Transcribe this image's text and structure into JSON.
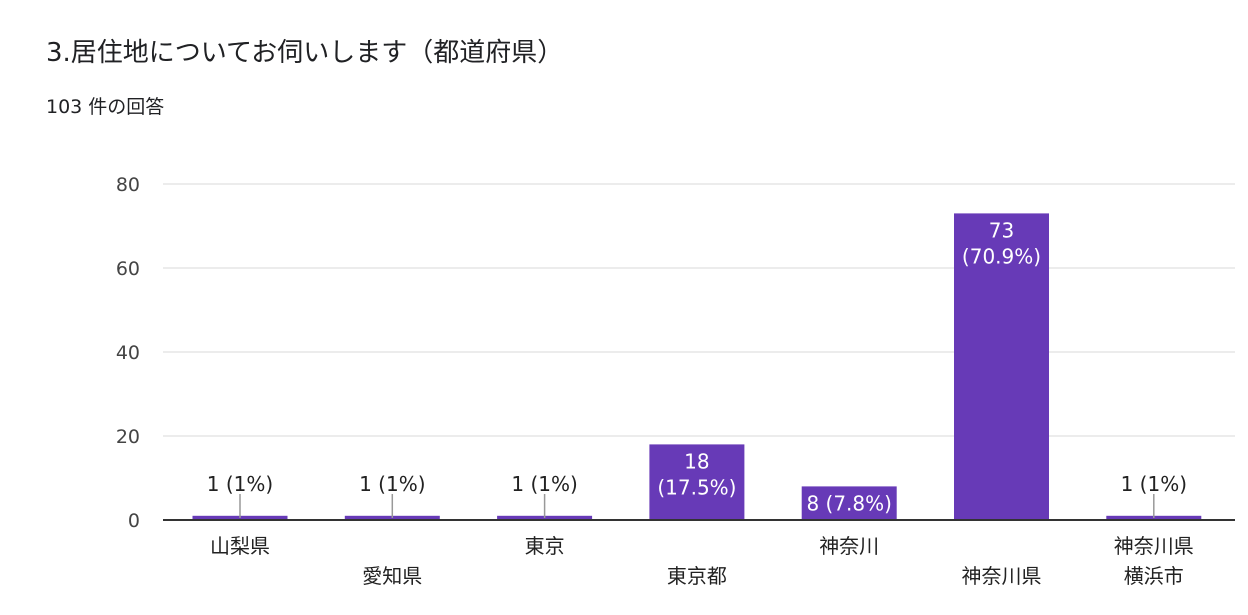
{
  "header": {
    "title": "3.居住地についてお伺いします（都道府県）",
    "subtitle": "103 件の回答"
  },
  "colors": {
    "bar": "#673ab7",
    "grid": "#e6e6e6",
    "axis": "#333333"
  },
  "chart_data": {
    "type": "bar",
    "title": "3.居住地についてお伺いします（都道府県）",
    "categories": [
      [
        "山梨県"
      ],
      [
        "愛知県"
      ],
      [
        "東京"
      ],
      [
        "東京都"
      ],
      [
        "神奈川"
      ],
      [
        "神奈川県"
      ],
      [
        "神奈川県",
        "横浜市"
      ]
    ],
    "values": [
      1,
      1,
      1,
      18,
      8,
      73,
      1
    ],
    "data_labels": [
      [
        "1 (1%)"
      ],
      [
        "1 (1%)"
      ],
      [
        "1 (1%)"
      ],
      [
        "18",
        "(17.5%)"
      ],
      [
        "8 (7.8%)"
      ],
      [
        "73",
        "(70.9%)"
      ],
      [
        "1 (1%)"
      ]
    ],
    "yticks": [
      0,
      20,
      40,
      60,
      80
    ],
    "ylim": [
      0,
      80
    ],
    "xlabel": "",
    "ylabel": "",
    "grid": true,
    "legend": "none"
  }
}
